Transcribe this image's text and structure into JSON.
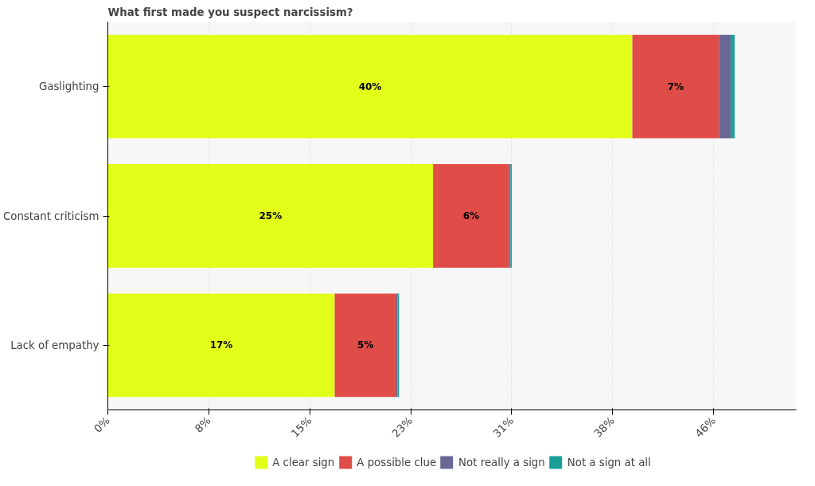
{
  "chart_data": {
    "type": "bar",
    "orientation": "horizontal",
    "stacked": true,
    "title": "What first made you suspect narcissism?",
    "categories": [
      "Gaslighting",
      "Constant criticism",
      "Lack of empathy"
    ],
    "series": [
      {
        "name": "A clear sign",
        "color": "#e2ff1a",
        "values": [
          40,
          24.8,
          17.3
        ],
        "value_labels": [
          "40%",
          "25%",
          "17%"
        ]
      },
      {
        "name": "A possible clue",
        "color": "#e04c48",
        "values": [
          6.6,
          5.8,
          4.7
        ],
        "value_labels": [
          "7%",
          "6%",
          "5%"
        ]
      },
      {
        "name": "Not really a sign",
        "color": "#6a6796",
        "values": [
          0.9,
          0.1,
          0.1
        ],
        "value_labels": [
          null,
          null,
          null
        ]
      },
      {
        "name": "Not a sign at all",
        "color": "#1a9e9a",
        "values": [
          0.3,
          0.1,
          0.1
        ],
        "value_labels": [
          null,
          null,
          null
        ]
      }
    ],
    "xlim": [
      0,
      52.5
    ],
    "xticks": [
      {
        "value": 0,
        "label": "0%"
      },
      {
        "value": 7.7,
        "label": "8%"
      },
      {
        "value": 15.4,
        "label": "15%"
      },
      {
        "value": 23.1,
        "label": "23%"
      },
      {
        "value": 30.8,
        "label": "31%"
      },
      {
        "value": 38.5,
        "label": "38%"
      },
      {
        "value": 46.2,
        "label": "46%"
      }
    ],
    "grid": "x",
    "legend": "bottom"
  }
}
